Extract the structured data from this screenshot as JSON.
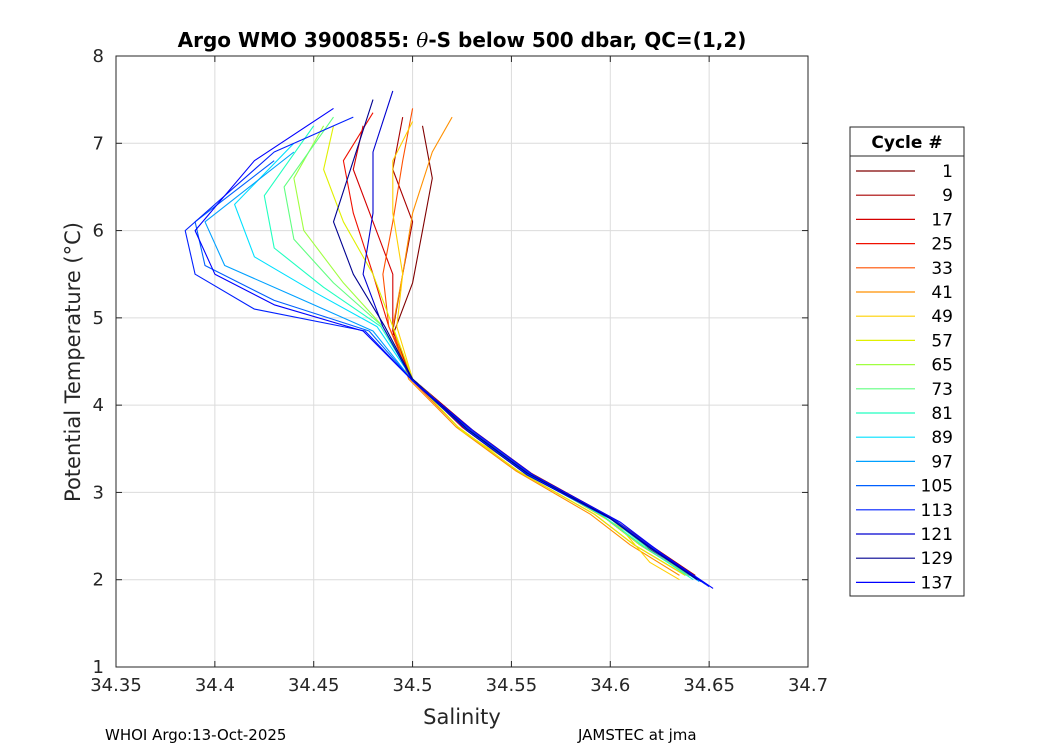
{
  "chart_data": {
    "type": "line",
    "title_prefix": "Argo WMO 3900855: ",
    "title_theta": "θ",
    "title_suffix": "-S below 500 dbar,  QC=(1,2)",
    "xlabel": "Salinity",
    "ylabel": "Potential Temperature (°C)",
    "xlim": [
      34.35,
      34.7
    ],
    "ylim": [
      1,
      8
    ],
    "xticks": [
      "34.35",
      "34.4",
      "34.45",
      "34.5",
      "34.55",
      "34.6",
      "34.65",
      "34.7"
    ],
    "yticks": [
      "1",
      "2",
      "3",
      "4",
      "5",
      "6",
      "7",
      "8"
    ],
    "grid": true,
    "legend_title": "Cycle #",
    "legend_position": "right",
    "series": [
      {
        "name": "1",
        "color": "#800000"
      },
      {
        "name": "9",
        "color": "#a80000"
      },
      {
        "name": "17",
        "color": "#d40000"
      },
      {
        "name": "25",
        "color": "#f01000"
      },
      {
        "name": "33",
        "color": "#ff5000"
      },
      {
        "name": "41",
        "color": "#ff9000"
      },
      {
        "name": "49",
        "color": "#ffd000"
      },
      {
        "name": "57",
        "color": "#e0f000"
      },
      {
        "name": "65",
        "color": "#a0ff40"
      },
      {
        "name": "73",
        "color": "#60ff80"
      },
      {
        "name": "81",
        "color": "#20ffc0"
      },
      {
        "name": "89",
        "color": "#00e0ff"
      },
      {
        "name": "97",
        "color": "#00a0ff"
      },
      {
        "name": "105",
        "color": "#0060ff"
      },
      {
        "name": "113",
        "color": "#0020ff"
      },
      {
        "name": "121",
        "color": "#0000d0"
      },
      {
        "name": "129",
        "color": "#000090"
      },
      {
        "name": "137",
        "color": "#0000ff"
      }
    ],
    "profiles": {
      "1": [
        [
          34.645,
          2.0
        ],
        [
          34.62,
          2.35
        ],
        [
          34.6,
          2.7
        ],
        [
          34.56,
          3.2
        ],
        [
          34.53,
          3.7
        ],
        [
          34.5,
          4.3
        ],
        [
          34.49,
          4.8
        ],
        [
          34.5,
          5.4
        ],
        [
          34.505,
          6.0
        ],
        [
          34.51,
          6.6
        ],
        [
          34.505,
          7.2
        ]
      ],
      "9": [
        [
          34.643,
          2.05
        ],
        [
          34.62,
          2.4
        ],
        [
          34.6,
          2.72
        ],
        [
          34.56,
          3.22
        ],
        [
          34.53,
          3.72
        ],
        [
          34.5,
          4.3
        ],
        [
          34.49,
          4.85
        ],
        [
          34.495,
          5.5
        ],
        [
          34.5,
          6.1
        ],
        [
          34.49,
          6.7
        ],
        [
          34.495,
          7.3
        ]
      ],
      "17": [
        [
          34.64,
          2.05
        ],
        [
          34.615,
          2.4
        ],
        [
          34.595,
          2.75
        ],
        [
          34.555,
          3.25
        ],
        [
          34.525,
          3.75
        ],
        [
          34.5,
          4.3
        ],
        [
          34.49,
          4.85
        ],
        [
          34.49,
          5.5
        ],
        [
          34.48,
          6.1
        ],
        [
          34.47,
          6.7
        ],
        [
          34.475,
          7.2
        ]
      ],
      "25": [
        [
          34.64,
          2.05
        ],
        [
          34.615,
          2.4
        ],
        [
          34.595,
          2.75
        ],
        [
          34.555,
          3.25
        ],
        [
          34.525,
          3.75
        ],
        [
          34.5,
          4.3
        ],
        [
          34.488,
          4.9
        ],
        [
          34.48,
          5.5
        ],
        [
          34.47,
          6.2
        ],
        [
          34.465,
          6.8
        ],
        [
          34.48,
          7.35
        ]
      ],
      "33": [
        [
          34.638,
          2.05
        ],
        [
          34.612,
          2.4
        ],
        [
          34.592,
          2.75
        ],
        [
          34.553,
          3.25
        ],
        [
          34.523,
          3.75
        ],
        [
          34.499,
          4.3
        ],
        [
          34.488,
          4.9
        ],
        [
          34.485,
          5.5
        ],
        [
          34.49,
          6.1
        ],
        [
          34.495,
          6.8
        ],
        [
          34.5,
          7.4
        ]
      ],
      "41": [
        [
          34.635,
          2.05
        ],
        [
          34.61,
          2.4
        ],
        [
          34.59,
          2.75
        ],
        [
          34.552,
          3.25
        ],
        [
          34.522,
          3.75
        ],
        [
          34.498,
          4.3
        ],
        [
          34.49,
          4.9
        ],
        [
          34.495,
          5.5
        ],
        [
          34.5,
          6.2
        ],
        [
          34.51,
          6.9
        ],
        [
          34.52,
          7.3
        ]
      ],
      "49": [
        [
          34.635,
          2.0
        ],
        [
          34.62,
          2.2
        ],
        [
          34.605,
          2.6
        ],
        [
          34.56,
          3.2
        ],
        [
          34.525,
          3.7
        ],
        [
          34.5,
          4.3
        ],
        [
          34.492,
          4.9
        ],
        [
          34.495,
          5.5
        ],
        [
          34.49,
          6.2
        ],
        [
          34.49,
          6.8
        ],
        [
          34.5,
          7.25
        ]
      ],
      "57": [
        [
          34.638,
          2.05
        ],
        [
          34.612,
          2.4
        ],
        [
          34.592,
          2.75
        ],
        [
          34.553,
          3.25
        ],
        [
          34.523,
          3.75
        ],
        [
          34.5,
          4.3
        ],
        [
          34.49,
          4.9
        ],
        [
          34.48,
          5.5
        ],
        [
          34.465,
          6.1
        ],
        [
          34.455,
          6.7
        ],
        [
          34.46,
          7.2
        ]
      ],
      "65": [
        [
          34.64,
          2.05
        ],
        [
          34.615,
          2.4
        ],
        [
          34.595,
          2.75
        ],
        [
          34.556,
          3.25
        ],
        [
          34.526,
          3.75
        ],
        [
          34.5,
          4.3
        ],
        [
          34.485,
          4.9
        ],
        [
          34.465,
          5.4
        ],
        [
          34.445,
          6.0
        ],
        [
          34.44,
          6.6
        ],
        [
          34.455,
          7.2
        ]
      ],
      "73": [
        [
          34.642,
          2.05
        ],
        [
          34.617,
          2.4
        ],
        [
          34.597,
          2.75
        ],
        [
          34.557,
          3.25
        ],
        [
          34.527,
          3.75
        ],
        [
          34.5,
          4.3
        ],
        [
          34.485,
          4.9
        ],
        [
          34.46,
          5.4
        ],
        [
          34.44,
          5.9
        ],
        [
          34.435,
          6.5
        ],
        [
          34.46,
          7.3
        ]
      ],
      "81": [
        [
          34.642,
          2.0
        ],
        [
          34.617,
          2.38
        ],
        [
          34.597,
          2.72
        ],
        [
          34.557,
          3.22
        ],
        [
          34.527,
          3.72
        ],
        [
          34.5,
          4.3
        ],
        [
          34.484,
          4.9
        ],
        [
          34.455,
          5.35
        ],
        [
          34.43,
          5.8
        ],
        [
          34.425,
          6.4
        ],
        [
          34.45,
          7.2
        ]
      ],
      "89": [
        [
          34.644,
          2.0
        ],
        [
          34.619,
          2.38
        ],
        [
          34.599,
          2.72
        ],
        [
          34.558,
          3.22
        ],
        [
          34.528,
          3.72
        ],
        [
          34.5,
          4.3
        ],
        [
          34.482,
          4.9
        ],
        [
          34.45,
          5.3
        ],
        [
          34.42,
          5.7
        ],
        [
          34.41,
          6.3
        ],
        [
          34.44,
          7.0
        ]
      ],
      "97": [
        [
          34.645,
          1.98
        ],
        [
          34.62,
          2.36
        ],
        [
          34.6,
          2.7
        ],
        [
          34.558,
          3.2
        ],
        [
          34.528,
          3.7
        ],
        [
          34.5,
          4.28
        ],
        [
          34.48,
          4.85
        ],
        [
          34.44,
          5.25
        ],
        [
          34.405,
          5.6
        ],
        [
          34.395,
          6.1
        ],
        [
          34.44,
          6.9
        ]
      ],
      "105": [
        [
          34.648,
          1.95
        ],
        [
          34.622,
          2.34
        ],
        [
          34.602,
          2.68
        ],
        [
          34.559,
          3.2
        ],
        [
          34.529,
          3.7
        ],
        [
          34.5,
          4.28
        ],
        [
          34.478,
          4.85
        ],
        [
          34.43,
          5.2
        ],
        [
          34.395,
          5.6
        ],
        [
          34.39,
          6.1
        ],
        [
          34.43,
          6.8
        ]
      ],
      "113": [
        [
          34.65,
          1.92
        ],
        [
          34.624,
          2.32
        ],
        [
          34.603,
          2.67
        ],
        [
          34.56,
          3.2
        ],
        [
          34.53,
          3.7
        ],
        [
          34.5,
          4.28
        ],
        [
          34.476,
          4.85
        ],
        [
          34.42,
          5.1
        ],
        [
          34.39,
          5.5
        ],
        [
          34.385,
          6.0
        ],
        [
          34.43,
          6.9
        ],
        [
          34.47,
          7.3
        ]
      ],
      "121": [
        [
          34.646,
          1.98
        ],
        [
          34.621,
          2.36
        ],
        [
          34.6,
          2.7
        ],
        [
          34.558,
          3.2
        ],
        [
          34.528,
          3.7
        ],
        [
          34.5,
          4.28
        ],
        [
          34.485,
          4.9
        ],
        [
          34.475,
          5.5
        ],
        [
          34.48,
          6.2
        ],
        [
          34.48,
          6.9
        ],
        [
          34.49,
          7.6
        ]
      ],
      "129": [
        [
          34.644,
          2.0
        ],
        [
          34.619,
          2.38
        ],
        [
          34.599,
          2.72
        ],
        [
          34.558,
          3.22
        ],
        [
          34.528,
          3.72
        ],
        [
          34.5,
          4.3
        ],
        [
          34.486,
          4.9
        ],
        [
          34.47,
          5.5
        ],
        [
          34.46,
          6.1
        ],
        [
          34.47,
          6.8
        ],
        [
          34.48,
          7.5
        ]
      ],
      "137": [
        [
          34.652,
          1.9
        ],
        [
          34.626,
          2.3
        ],
        [
          34.605,
          2.66
        ],
        [
          34.561,
          3.2
        ],
        [
          34.531,
          3.7
        ],
        [
          34.5,
          4.28
        ],
        [
          34.475,
          4.85
        ],
        [
          34.43,
          5.15
        ],
        [
          34.4,
          5.5
        ],
        [
          34.39,
          6.0
        ],
        [
          34.42,
          6.8
        ],
        [
          34.46,
          7.4
        ]
      ]
    }
  },
  "footer": {
    "left": "WHOI Argo:13-Oct-2025",
    "right": "JAMSTEC at jma"
  }
}
